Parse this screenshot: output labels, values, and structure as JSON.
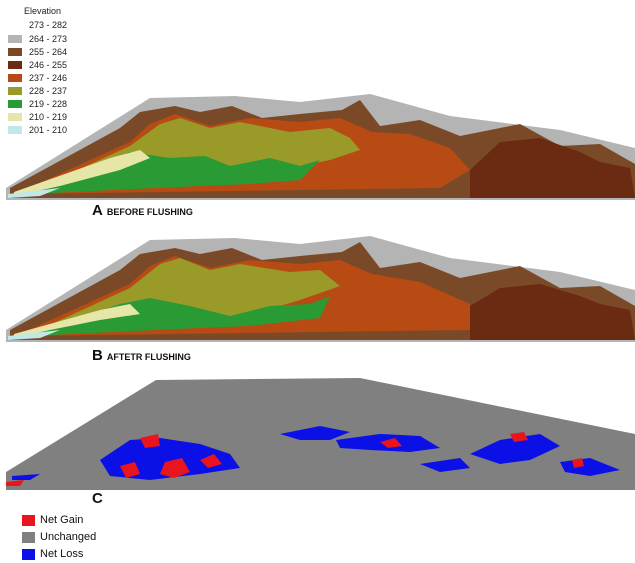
{
  "elevation_legend": {
    "title": "Elevation",
    "classes": [
      {
        "label": "273 - 282",
        "color": "#ffffff"
      },
      {
        "label": "264 - 273",
        "color": "#b4b4b4"
      },
      {
        "label": "255 - 264",
        "color": "#7a4a28"
      },
      {
        "label": "246 - 255",
        "color": "#6b2a12"
      },
      {
        "label": "237 - 246",
        "color": "#b84a14"
      },
      {
        "label": "228 - 237",
        "color": "#9a9a28"
      },
      {
        "label": "219 - 228",
        "color": "#2a9a34"
      },
      {
        "label": "210 - 219",
        "color": "#e6e6a8"
      },
      {
        "label": "201 - 210",
        "color": "#bfe8e8"
      }
    ]
  },
  "panels": [
    {
      "letter": "A",
      "title": "BEFORE FLUSHING"
    },
    {
      "letter": "B",
      "title": "AFTETR FLUSHING"
    },
    {
      "letter": "C",
      "title": ""
    }
  ],
  "difference_legend": [
    {
      "label": "Net Gain",
      "color": "#e8141e"
    },
    {
      "label": "Unchanged",
      "color": "#808080"
    },
    {
      "label": "Net Loss",
      "color": "#0a10e6"
    }
  ]
}
